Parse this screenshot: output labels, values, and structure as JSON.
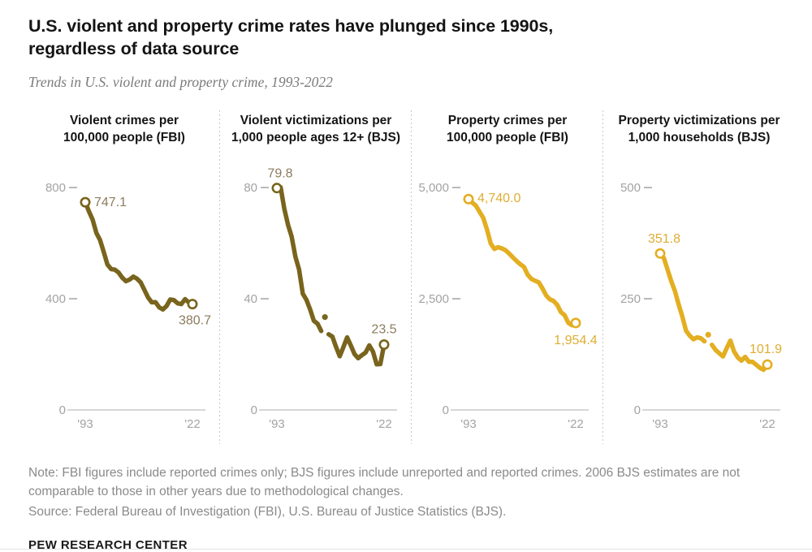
{
  "header": {
    "title_lines": [
      "U.S. violent and property crime rates have plunged since 1990s,",
      "regardless of data source"
    ],
    "subtitle": "Trends in U.S. violent and property crime, 1993-2022"
  },
  "colors": {
    "accent_dark_olive": "#78641C",
    "accent_gold": "#E3AE21",
    "dark_label": "#8C7B5E",
    "gold_label": "#DFAD33",
    "tick_gray": "#A3A3A3",
    "axis_gray": "#C9C9C9"
  },
  "chart_data": [
    {
      "type": "line",
      "title_lines": [
        "Violent crimes per",
        "100,000 people (FBI)"
      ],
      "year_range": [
        1993,
        2022
      ],
      "x_tick_labels": [
        "'93",
        "'22"
      ],
      "y_ticks": [
        800,
        400,
        0
      ],
      "y_tick_labels": [
        "800",
        "400",
        "0"
      ],
      "ymax": 800,
      "values": [
        747.1,
        713.6,
        684.5,
        636.6,
        611.0,
        567.6,
        523.0,
        506.5,
        504.5,
        494.4,
        475.8,
        463.2,
        469.0,
        479.3,
        471.8,
        458.6,
        431.9,
        404.5,
        387.1,
        387.8,
        369.1,
        361.6,
        373.7,
        397.5,
        394.9,
        383.4,
        380.8,
        398.5,
        387.0,
        380.7
      ],
      "gap_year": null,
      "start_label": "747.1",
      "end_label": "380.7",
      "line_color": "#78641C",
      "label_color": "#8C7B5E"
    },
    {
      "type": "line",
      "title_lines": [
        "Violent victimizations per",
        "1,000 people ages 12+ (BJS)"
      ],
      "year_range": [
        1993,
        2022
      ],
      "x_tick_labels": [
        "'93",
        "'22"
      ],
      "y_ticks": [
        80,
        40,
        0
      ],
      "y_tick_labels": [
        "80",
        "40",
        "0"
      ],
      "ymax": 80,
      "values": [
        79.8,
        80.1,
        72.4,
        66.6,
        62.3,
        55.1,
        50.5,
        41.8,
        39.6,
        36.1,
        32.1,
        31.0,
        28.4,
        33.4,
        27.2,
        26.4,
        22.7,
        19.3,
        22.6,
        26.1,
        23.2,
        20.1,
        18.6,
        19.7,
        20.6,
        23.2,
        21.0,
        16.4,
        16.5,
        23.5
      ],
      "gap_year": 2006,
      "start_label": "79.8",
      "end_label": "23.5",
      "line_color": "#78641C",
      "label_color": "#8C7B5E"
    },
    {
      "type": "line",
      "title_lines": [
        "Property crimes per",
        "100,000 people (FBI)"
      ],
      "year_range": [
        1993,
        2022
      ],
      "x_tick_labels": [
        "'93",
        "'22"
      ],
      "y_ticks": [
        5000,
        2500,
        0
      ],
      "y_tick_labels": [
        "5,000",
        "2,500",
        "0"
      ],
      "ymax": 5000,
      "values": [
        4740.0,
        4660.2,
        4590.5,
        4451.0,
        4316.3,
        4052.5,
        3743.6,
        3618.3,
        3658.1,
        3630.6,
        3591.2,
        3514.1,
        3431.5,
        3346.6,
        3276.4,
        3214.6,
        3041.3,
        2945.9,
        2905.4,
        2868.0,
        2733.6,
        2574.1,
        2487.0,
        2451.6,
        2362.9,
        2199.5,
        2130.6,
        1958.2,
        1905.0,
        1954.4
      ],
      "gap_year": null,
      "start_label": "4,740.0",
      "end_label": "1,954.4",
      "line_color": "#E3AE21",
      "label_color": "#DFAD33"
    },
    {
      "type": "line",
      "title_lines": [
        "Property victimizations per",
        "1,000 households (BJS)"
      ],
      "year_range": [
        1993,
        2022
      ],
      "x_tick_labels": [
        "'93",
        "'22"
      ],
      "y_ticks": [
        500,
        250,
        0
      ],
      "y_tick_labels": [
        "500",
        "250",
        "0"
      ],
      "ymax": 500,
      "values": [
        351.8,
        341.2,
        315.5,
        289.3,
        267.1,
        237.0,
        210.0,
        178.1,
        166.9,
        159.0,
        163.2,
        161.1,
        154.2,
        169.0,
        146.5,
        134.7,
        127.4,
        120.2,
        138.7,
        155.8,
        131.4,
        118.1,
        110.7,
        119.4,
        108.4,
        108.2,
        101.4,
        94.5,
        90.3,
        101.9
      ],
      "gap_year": 2006,
      "start_label": "351.8",
      "end_label": "101.9",
      "line_color": "#E3AE21",
      "label_color": "#DFAD33"
    }
  ],
  "footer": {
    "note": "Note: FBI figures include reported crimes only; BJS figures include unreported and reported crimes. 2006 BJS estimates are not comparable to those in other years due to methodological changes.",
    "source": "Source: Federal Bureau of Investigation (FBI), U.S. Bureau of Justice Statistics (BJS).",
    "brand": "PEW RESEARCH CENTER"
  }
}
